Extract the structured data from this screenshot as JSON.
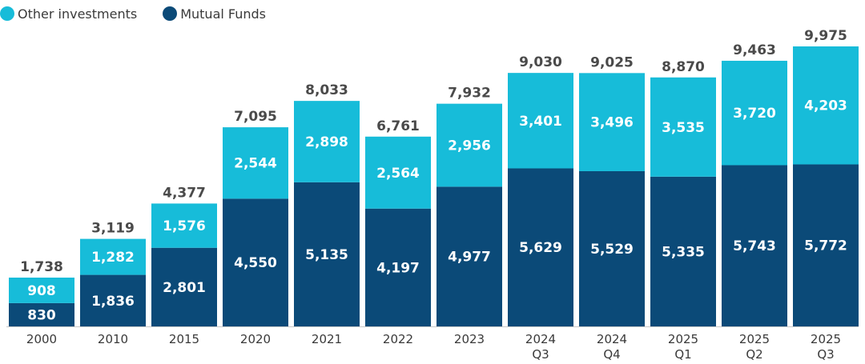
{
  "colors": {
    "other": "#17bcd9",
    "mutual": "#0b4a78",
    "axis": "#c8c8c8"
  },
  "legend": {
    "other_label": "Other investments",
    "mutual_label": "Mutual Funds"
  },
  "chart_data": {
    "type": "bar",
    "stacked": true,
    "categories": [
      [
        "2000"
      ],
      [
        "2010"
      ],
      [
        "2015"
      ],
      [
        "2020"
      ],
      [
        "2021"
      ],
      [
        "2022"
      ],
      [
        "2023"
      ],
      [
        "2024",
        "Q3"
      ],
      [
        "2024",
        "Q4"
      ],
      [
        "2025",
        "Q1"
      ],
      [
        "2025",
        "Q2"
      ],
      [
        "2025",
        "Q3"
      ]
    ],
    "series": [
      {
        "name": "Mutual Funds",
        "values": [
          830,
          1836,
          2801,
          4550,
          5135,
          4197,
          4977,
          5629,
          5529,
          5335,
          5743,
          5772
        ]
      },
      {
        "name": "Other investments",
        "values": [
          908,
          1282,
          1576,
          2544,
          2898,
          2564,
          2956,
          3401,
          3496,
          3535,
          3720,
          4203
        ]
      }
    ],
    "totals": [
      1738,
      3119,
      4377,
      7095,
      8033,
      6761,
      7932,
      9030,
      9025,
      8870,
      9463,
      9975
    ],
    "value_labels": {
      "mutual": [
        "830",
        "1,836",
        "2,801",
        "4,550",
        "5,135",
        "4,197",
        "4,977",
        "5,629",
        "5,529",
        "5,335",
        "5,743",
        "5,772"
      ],
      "other": [
        "908",
        "1,282",
        "1,576",
        "2,544",
        "2,898",
        "2,564",
        "2,956",
        "3,401",
        "3,496",
        "3,535",
        "3,720",
        "4,203"
      ],
      "totals": [
        "1,738",
        "3,119",
        "4,377",
        "7,095",
        "8,033",
        "6,761",
        "7,932",
        "9,030",
        "9,025",
        "8,870",
        "9,463",
        "9,975"
      ]
    },
    "title": "",
    "xlabel": "",
    "ylabel": "",
    "ylim": [
      0,
      10000
    ],
    "grid": false,
    "legend_position": "top-left"
  }
}
